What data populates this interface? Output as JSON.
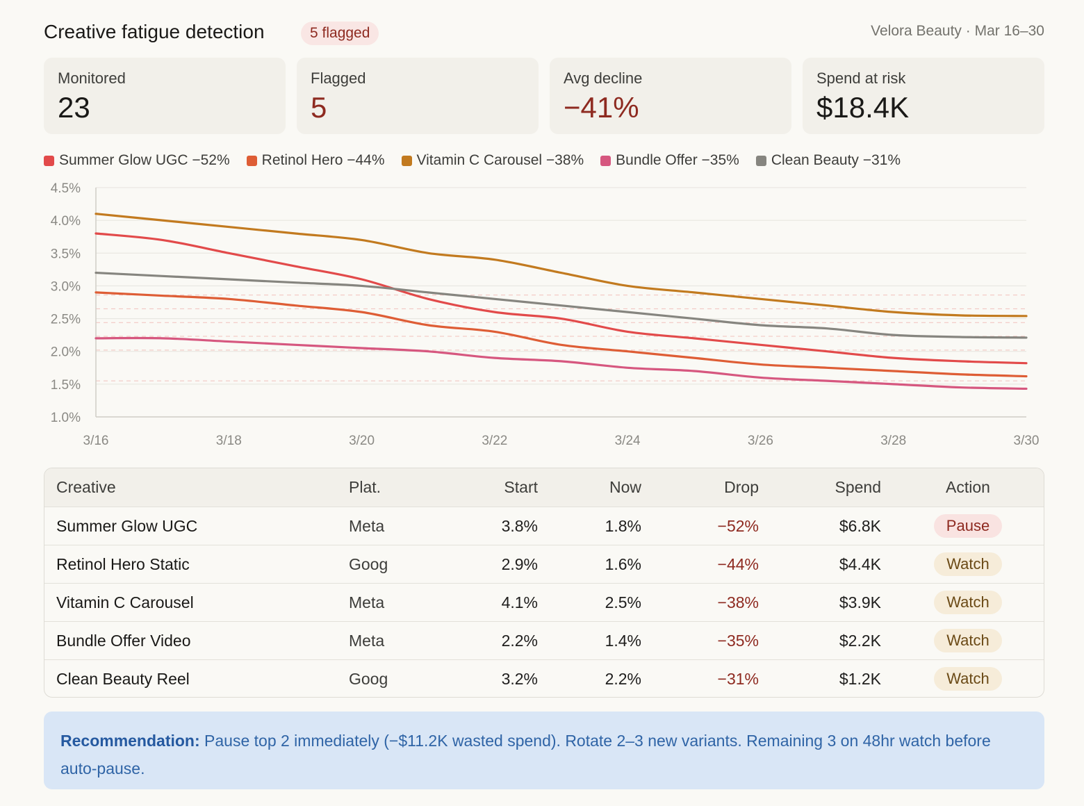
{
  "header": {
    "title": "Creative fatigue detection",
    "badge": "5 flagged",
    "meta": "Velora Beauty · Mar 16–30"
  },
  "kpis": [
    {
      "label": "Monitored",
      "value": "23",
      "negative": false
    },
    {
      "label": "Flagged",
      "value": "5",
      "negative": true
    },
    {
      "label": "Avg decline",
      "value": "−41%",
      "negative": true
    },
    {
      "label": "Spend at risk",
      "value": "$18.4K",
      "negative": false
    }
  ],
  "chart_data": {
    "type": "line",
    "title": "",
    "xlabel": "",
    "ylabel": "",
    "ylim": [
      1.0,
      4.5
    ],
    "y_ticks": [
      "4.5%",
      "4.0%",
      "3.5%",
      "3.0%",
      "2.5%",
      "2.0%",
      "1.5%",
      "1.0%"
    ],
    "y_tick_values": [
      4.5,
      4.0,
      3.5,
      3.0,
      2.5,
      2.0,
      1.5,
      1.0
    ],
    "x_ticks": [
      "3/16",
      "3/18",
      "3/20",
      "3/22",
      "3/24",
      "3/26",
      "3/28",
      "3/30"
    ],
    "x": [
      "3/16",
      "3/17",
      "3/18",
      "3/19",
      "3/20",
      "3/21",
      "3/22",
      "3/23",
      "3/24",
      "3/25",
      "3/26",
      "3/27",
      "3/28",
      "3/29",
      "3/30"
    ],
    "grid": true,
    "legend": "top-left",
    "series": [
      {
        "name": "Summer Glow UGC −52%",
        "color": "#e24a4a",
        "values": [
          3.8,
          3.7,
          3.5,
          3.3,
          3.1,
          2.8,
          2.6,
          2.5,
          2.3,
          2.2,
          2.1,
          2.0,
          1.9,
          1.85,
          1.82
        ]
      },
      {
        "name": "Retinol Hero −44%",
        "color": "#de5d35",
        "values": [
          2.9,
          2.85,
          2.8,
          2.7,
          2.6,
          2.4,
          2.3,
          2.1,
          2.0,
          1.9,
          1.8,
          1.75,
          1.7,
          1.65,
          1.62
        ]
      },
      {
        "name": "Vitamin C Carousel −38%",
        "color": "#c27a1f",
        "values": [
          4.1,
          4.0,
          3.9,
          3.8,
          3.7,
          3.5,
          3.4,
          3.2,
          3.0,
          2.9,
          2.8,
          2.7,
          2.6,
          2.55,
          2.54
        ]
      },
      {
        "name": "Bundle Offer −35%",
        "color": "#d6577f",
        "values": [
          2.2,
          2.2,
          2.15,
          2.1,
          2.05,
          2.0,
          1.9,
          1.85,
          1.75,
          1.7,
          1.6,
          1.55,
          1.5,
          1.45,
          1.43
        ]
      },
      {
        "name": "Clean Beauty −31%",
        "color": "#86857f",
        "values": [
          3.2,
          3.15,
          3.1,
          3.05,
          3.0,
          2.9,
          2.8,
          2.7,
          2.6,
          2.5,
          2.4,
          2.35,
          2.25,
          2.22,
          2.21
        ]
      }
    ],
    "reference_lines": [
      2.86,
      2.65,
      2.44,
      2.23,
      2.02,
      1.55
    ]
  },
  "table": {
    "columns": [
      "Creative",
      "Plat.",
      "Start",
      "Now",
      "Drop",
      "Spend",
      "Action"
    ],
    "rows": [
      {
        "creative": "Summer Glow UGC",
        "plat": "Meta",
        "start": "3.8%",
        "now": "1.8%",
        "drop": "−52%",
        "spend": "$6.8K",
        "action": "Pause",
        "action_type": "pause"
      },
      {
        "creative": "Retinol Hero Static",
        "plat": "Goog",
        "start": "2.9%",
        "now": "1.6%",
        "drop": "−44%",
        "spend": "$4.4K",
        "action": "Watch",
        "action_type": "watch"
      },
      {
        "creative": "Vitamin C Carousel",
        "plat": "Meta",
        "start": "4.1%",
        "now": "2.5%",
        "drop": "−38%",
        "spend": "$3.9K",
        "action": "Watch",
        "action_type": "watch"
      },
      {
        "creative": "Bundle Offer Video",
        "plat": "Meta",
        "start": "2.2%",
        "now": "1.4%",
        "drop": "−35%",
        "spend": "$2.2K",
        "action": "Watch",
        "action_type": "watch"
      },
      {
        "creative": "Clean Beauty Reel",
        "plat": "Goog",
        "start": "3.2%",
        "now": "2.2%",
        "drop": "−31%",
        "spend": "$1.2K",
        "action": "Watch",
        "action_type": "watch"
      }
    ]
  },
  "recommendation": {
    "label": "Recommendation:",
    "text": " Pause top 2 immediately (−$11.2K wasted spend). Rotate 2–3 new variants. Remaining 3 on 48hr watch before auto-pause."
  }
}
